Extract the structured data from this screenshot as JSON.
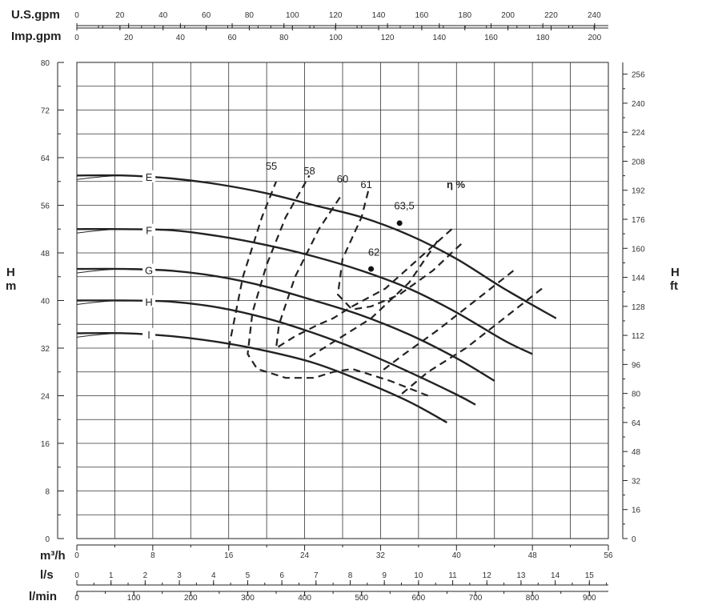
{
  "chart_data": {
    "type": "line",
    "title": "",
    "units": {
      "us_gpm": "U.S.gpm",
      "imp_gpm": "Imp.gpm",
      "flow_m3h": "m³/h",
      "flow_ls": "l/s",
      "flow_lmin": "l/min",
      "head_m_h": "H",
      "head_m_unit": "m",
      "head_ft_h": "H",
      "head_ft_unit": "ft"
    },
    "axes": {
      "x_m3h": {
        "min": 0,
        "max": 56,
        "ticks": [
          "0",
          "8",
          "16",
          "24",
          "32",
          "40",
          "48",
          "56"
        ]
      },
      "y_m": {
        "min": 0,
        "max": 80,
        "ticks": [
          "0",
          "8",
          "16",
          "24",
          "32",
          "40",
          "48",
          "56",
          "64",
          "72",
          "80"
        ]
      },
      "y_ft": {
        "ticks": [
          "0",
          "16",
          "32",
          "48",
          "64",
          "80",
          "96",
          "112",
          "128",
          "144",
          "160",
          "176",
          "192",
          "208",
          "224",
          "240",
          "256"
        ]
      },
      "x_usgpm": {
        "ticks": [
          "0",
          "20",
          "40",
          "60",
          "80",
          "100",
          "120",
          "140",
          "160",
          "180",
          "200",
          "220",
          "240"
        ]
      },
      "x_impgpm": {
        "ticks": [
          "0",
          "20",
          "40",
          "60",
          "80",
          "100",
          "120",
          "140",
          "160",
          "180",
          "200"
        ]
      },
      "x_ls": {
        "ticks": [
          "0",
          "1",
          "2",
          "3",
          "4",
          "5",
          "6",
          "7",
          "8",
          "9",
          "10",
          "11",
          "12",
          "13",
          "14",
          "15"
        ]
      },
      "x_lmin": {
        "ticks": [
          "0",
          "100",
          "200",
          "300",
          "400",
          "500",
          "600",
          "700",
          "800",
          "900"
        ]
      },
      "grid": true
    },
    "series": [
      {
        "name": "E",
        "x": [
          0,
          5,
          10,
          15,
          20,
          25,
          30,
          35,
          40,
          45,
          50.5
        ],
        "y": [
          61,
          61,
          60.5,
          59.5,
          58,
          56,
          54,
          51,
          47,
          42,
          37
        ]
      },
      {
        "name": "F",
        "x": [
          0,
          5,
          10,
          15,
          20,
          25,
          30,
          35,
          40,
          45,
          48
        ],
        "y": [
          52,
          52,
          51.8,
          50.8,
          49.3,
          47.4,
          45,
          42,
          38,
          33.3,
          31
        ]
      },
      {
        "name": "G",
        "x": [
          0,
          5,
          10,
          15,
          20,
          25,
          30,
          35,
          40,
          44
        ],
        "y": [
          45.3,
          45.3,
          45,
          44,
          42.3,
          40,
          37.5,
          34.3,
          30.3,
          26.5
        ]
      },
      {
        "name": "H",
        "x": [
          0,
          5,
          10,
          15,
          20,
          25,
          30,
          35,
          40,
          42
        ],
        "y": [
          40,
          40,
          39.8,
          38.8,
          37,
          34.5,
          31.5,
          28,
          24.2,
          22.5
        ]
      },
      {
        "name": "I",
        "x": [
          0,
          5,
          10,
          15,
          20,
          25,
          30,
          35,
          39
        ],
        "y": [
          34.5,
          34.5,
          34,
          33,
          31.5,
          29.5,
          26.5,
          23,
          19.5
        ]
      }
    ],
    "efficiency_label": "η %",
    "efficiency_curves": [
      {
        "name": "55",
        "label_at": [
          20.5,
          62
        ]
      },
      {
        "name": "58",
        "label_at": [
          24.5,
          61.2
        ]
      },
      {
        "name": "60",
        "label_at": [
          28,
          59.8
        ]
      },
      {
        "name": "61",
        "label_at": [
          30.5,
          58.9
        ]
      }
    ],
    "best_efficiency_points": [
      {
        "name": "63,5",
        "x": 34,
        "y": 53,
        "label_at": [
          34.5,
          55.3
        ]
      },
      {
        "name": "62",
        "x": 31,
        "y": 45.3,
        "label_at": [
          31.3,
          47.5
        ]
      }
    ]
  }
}
